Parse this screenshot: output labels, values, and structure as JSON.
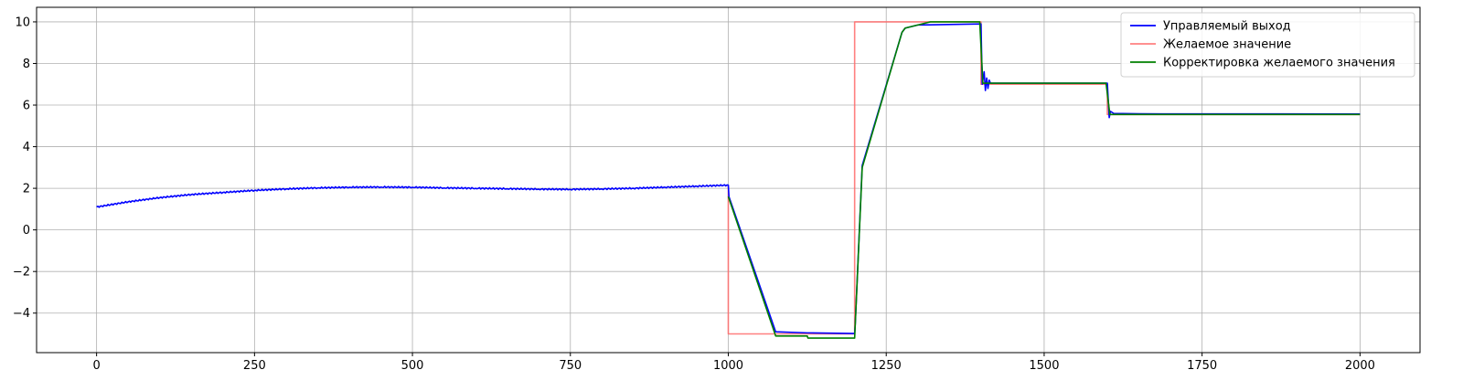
{
  "chart_data": {
    "type": "line",
    "title": "",
    "xlabel": "",
    "ylabel": "",
    "xlim": [
      -95,
      2095
    ],
    "ylim": [
      -5.9,
      10.7
    ],
    "xticks": [
      0,
      250,
      500,
      750,
      1000,
      1250,
      1500,
      1750,
      2000
    ],
    "xtick_labels": [
      "0",
      "250",
      "500",
      "750",
      "1000",
      "1250",
      "1500",
      "1750",
      "2000"
    ],
    "yticks": [
      -4,
      -2,
      0,
      2,
      4,
      6,
      8,
      10
    ],
    "ytick_labels": [
      "−4",
      "−2",
      "0",
      "2",
      "4",
      "6",
      "8",
      "10"
    ],
    "grid": true,
    "legend_position": "top-right",
    "series": [
      {
        "name": "Управляемый выход",
        "color": "#0000ff",
        "x": [
          0,
          50,
          100,
          150,
          200,
          250,
          300,
          350,
          400,
          450,
          500,
          550,
          600,
          650,
          700,
          750,
          800,
          850,
          900,
          950,
          1000,
          1001,
          1075,
          1125,
          1126,
          1200,
          1201,
          1212,
          1275,
          1280,
          1300,
          1400,
          1402,
          1405,
          1407,
          1409,
          1411,
          1413,
          1415,
          1500,
          1600,
          1603,
          1605,
          1610,
          1650,
          2000
        ],
        "y": [
          1.1,
          1.35,
          1.55,
          1.7,
          1.8,
          1.9,
          1.97,
          2.02,
          2.05,
          2.06,
          2.05,
          2.02,
          2.0,
          1.98,
          1.96,
          1.95,
          1.97,
          2.0,
          2.05,
          2.1,
          2.15,
          1.6,
          -4.9,
          -4.95,
          -4.95,
          -4.98,
          -4.5,
          3.1,
          9.5,
          9.7,
          9.85,
          9.9,
          7.0,
          7.6,
          6.7,
          7.3,
          6.8,
          7.2,
          7.05,
          7.05,
          7.05,
          5.4,
          5.7,
          5.6,
          5.58,
          5.57
        ]
      },
      {
        "name": "Желаемое значение",
        "color": "#ff6a6a",
        "x": [
          1000,
          1000,
          1200,
          1200,
          1400,
          1400,
          1600,
          1600,
          2000
        ],
        "y": [
          2.15,
          -5.0,
          -5.0,
          10.0,
          10.0,
          7.0,
          7.0,
          5.55,
          5.55
        ],
        "step": true
      },
      {
        "name": "Корректировка желаемого значения",
        "color": "#008000",
        "x": [
          1000,
          1075,
          1125,
          1126,
          1200,
          1212,
          1275,
          1280,
          1320,
          1398,
          1403,
          1500,
          1598,
          1604,
          2000
        ],
        "y": [
          1.6,
          -5.1,
          -5.1,
          -5.2,
          -5.2,
          3.0,
          9.5,
          9.7,
          10.0,
          10.0,
          7.05,
          7.05,
          7.05,
          5.55,
          5.55
        ]
      }
    ]
  }
}
